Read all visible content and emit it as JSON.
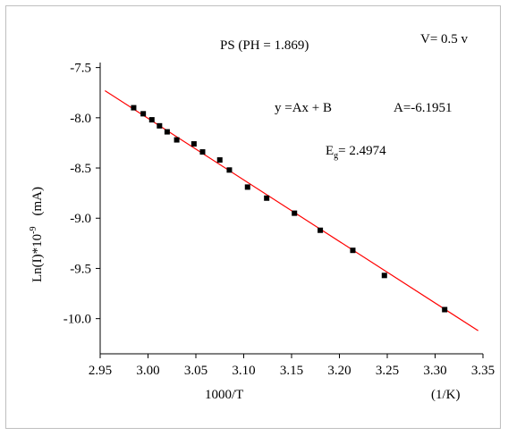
{
  "chart_data": {
    "type": "scatter",
    "title": "PS (PH = 1.869)",
    "xlabel": "1000/T",
    "xunit": "(1/K)",
    "ylabel_main": "Ln(I)*10",
    "ylabel_exp": "-9",
    "ylabel_unit": "(mA)",
    "xlim": [
      2.95,
      3.35
    ],
    "ylim": [
      -10.35,
      -7.45
    ],
    "x_ticks": [
      2.95,
      3.0,
      3.05,
      3.1,
      3.15,
      3.2,
      3.25,
      3.3,
      3.35
    ],
    "x_tick_labels": [
      "2.95",
      "3.00",
      "3.05",
      "3.10",
      "3.15",
      "3.20",
      "3.25",
      "3.30",
      "3.35"
    ],
    "y_ticks": [
      -7.5,
      -8.0,
      -8.5,
      -9.0,
      -9.5,
      -10.0
    ],
    "y_tick_labels": [
      "-7.5",
      "-8.0",
      "-8.5",
      "-9.0",
      "-9.5",
      "-10.0"
    ],
    "annotations": {
      "voltage": "V= 0.5 v",
      "equation": "y =Ax + B",
      "slope": "A=-6.1951",
      "energy_prefix": "E",
      "energy_sub": "g",
      "energy_value": "= 2.4974"
    },
    "fit_line": {
      "x": [
        2.955,
        3.345
      ],
      "y": [
        -7.73,
        -10.12
      ],
      "color": "#ff0000"
    },
    "points": {
      "color": "#000000",
      "x": [
        2.985,
        2.995,
        3.004,
        3.012,
        3.02,
        3.03,
        3.048,
        3.057,
        3.075,
        3.085,
        3.104,
        3.124,
        3.153,
        3.18,
        3.214,
        3.247,
        3.31
      ],
      "y": [
        -7.9,
        -7.96,
        -8.02,
        -8.08,
        -8.14,
        -8.22,
        -8.26,
        -8.34,
        -8.42,
        -8.52,
        -8.69,
        -8.8,
        -8.95,
        -9.12,
        -9.32,
        -9.57,
        -9.91
      ]
    },
    "grid": false,
    "legend": "none"
  }
}
